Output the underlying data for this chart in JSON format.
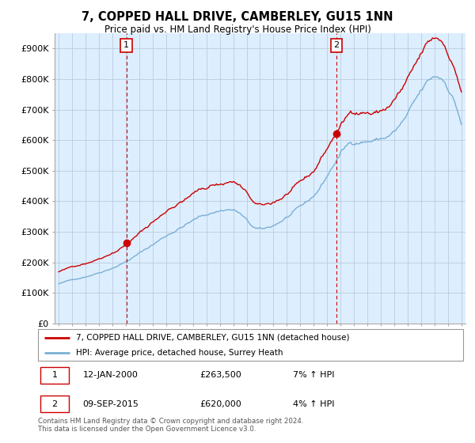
{
  "title": "7, COPPED HALL DRIVE, CAMBERLEY, GU15 1NN",
  "subtitle": "Price paid vs. HM Land Registry's House Price Index (HPI)",
  "ylabel_ticks": [
    "£0",
    "£100K",
    "£200K",
    "£300K",
    "£400K",
    "£500K",
    "£600K",
    "£700K",
    "£800K",
    "£900K"
  ],
  "ytick_values": [
    0,
    100000,
    200000,
    300000,
    400000,
    500000,
    600000,
    700000,
    800000,
    900000
  ],
  "ylim": [
    0,
    950000
  ],
  "xlim_start": 1994.7,
  "xlim_end": 2025.3,
  "sale1_year": 2000.04,
  "sale1_price": 263500,
  "sale2_year": 2015.69,
  "sale2_price": 620000,
  "legend_line1": "7, COPPED HALL DRIVE, CAMBERLEY, GU15 1NN (detached house)",
  "legend_line2": "HPI: Average price, detached house, Surrey Heath",
  "footer": "Contains HM Land Registry data © Crown copyright and database right 2024.\nThis data is licensed under the Open Government Licence v3.0.",
  "line_color_red": "#cc0000",
  "line_color_blue": "#7ab0d4",
  "dot_color": "#cc0000",
  "background_color": "#ffffff",
  "chart_bg_color": "#ddeeff",
  "grid_color": "#bbccdd"
}
